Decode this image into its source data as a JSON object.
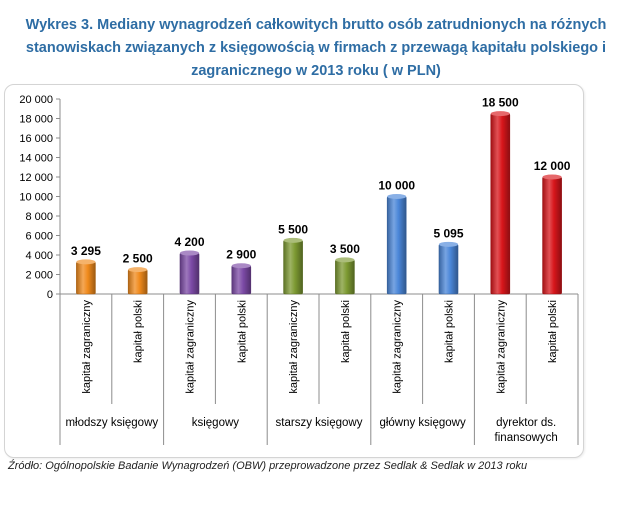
{
  "title_lines": [
    "Wykres 3. Mediany wynagrodzeń całkowitych brutto osób zatrudnionych na różnych",
    "stanowiskach związanych z księgowością w firmach z przewagą kapitału polskiego i",
    "zagranicznego w 2013 roku ( w PLN)"
  ],
  "source": "Źródło: Ogólnopolskie Badanie Wynagrodzeń (OBW) przeprowadzone przez Sedlak & Sedlak w 2013 roku",
  "chart_data": {
    "type": "bar",
    "title": "Wykres 3. Mediany wynagrodzeń całkowitych brutto osób zatrudnionych na różnych stanowiskach związanych z księgowością w firmach z przewagą kapitału polskiego i zagranicznego w 2013 roku ( w PLN)",
    "ylim": [
      0,
      20000
    ],
    "ytick_step": 2000,
    "yticks": [
      "0",
      "2 000",
      "4 000",
      "6 000",
      "8 000",
      "10 000",
      "12 000",
      "14 000",
      "16 000",
      "18 000",
      "20 000"
    ],
    "grid": false,
    "legend": "none",
    "groups": [
      {
        "label": "młodszy księgowy",
        "color": "#f08a1c"
      },
      {
        "label": "księgowy",
        "color": "#7c4aa6"
      },
      {
        "label": "starszy księgowy",
        "color": "#7d9a32"
      },
      {
        "label": "główny księgowy",
        "color": "#4a86d8"
      },
      {
        "label": "dyrektor ds. finansowych",
        "color": "#d8161b"
      }
    ],
    "categories": [
      "kapitał zagraniczny",
      "kapitał polski",
      "kapitał zagraniczny",
      "kapitał polski",
      "kapitał zagraniczny",
      "kapitał polski",
      "kapitał zagraniczny",
      "kapitał polski",
      "kapitał zagraniczny",
      "kapitał polski"
    ],
    "values": [
      3295,
      2500,
      4200,
      2900,
      5500,
      3500,
      10000,
      5095,
      18500,
      12000
    ],
    "value_labels": [
      "3 295",
      "2 500",
      "4 200",
      "2 900",
      "5 500",
      "3 500",
      "10 000",
      "5 095",
      "18 500",
      "12 000"
    ]
  }
}
